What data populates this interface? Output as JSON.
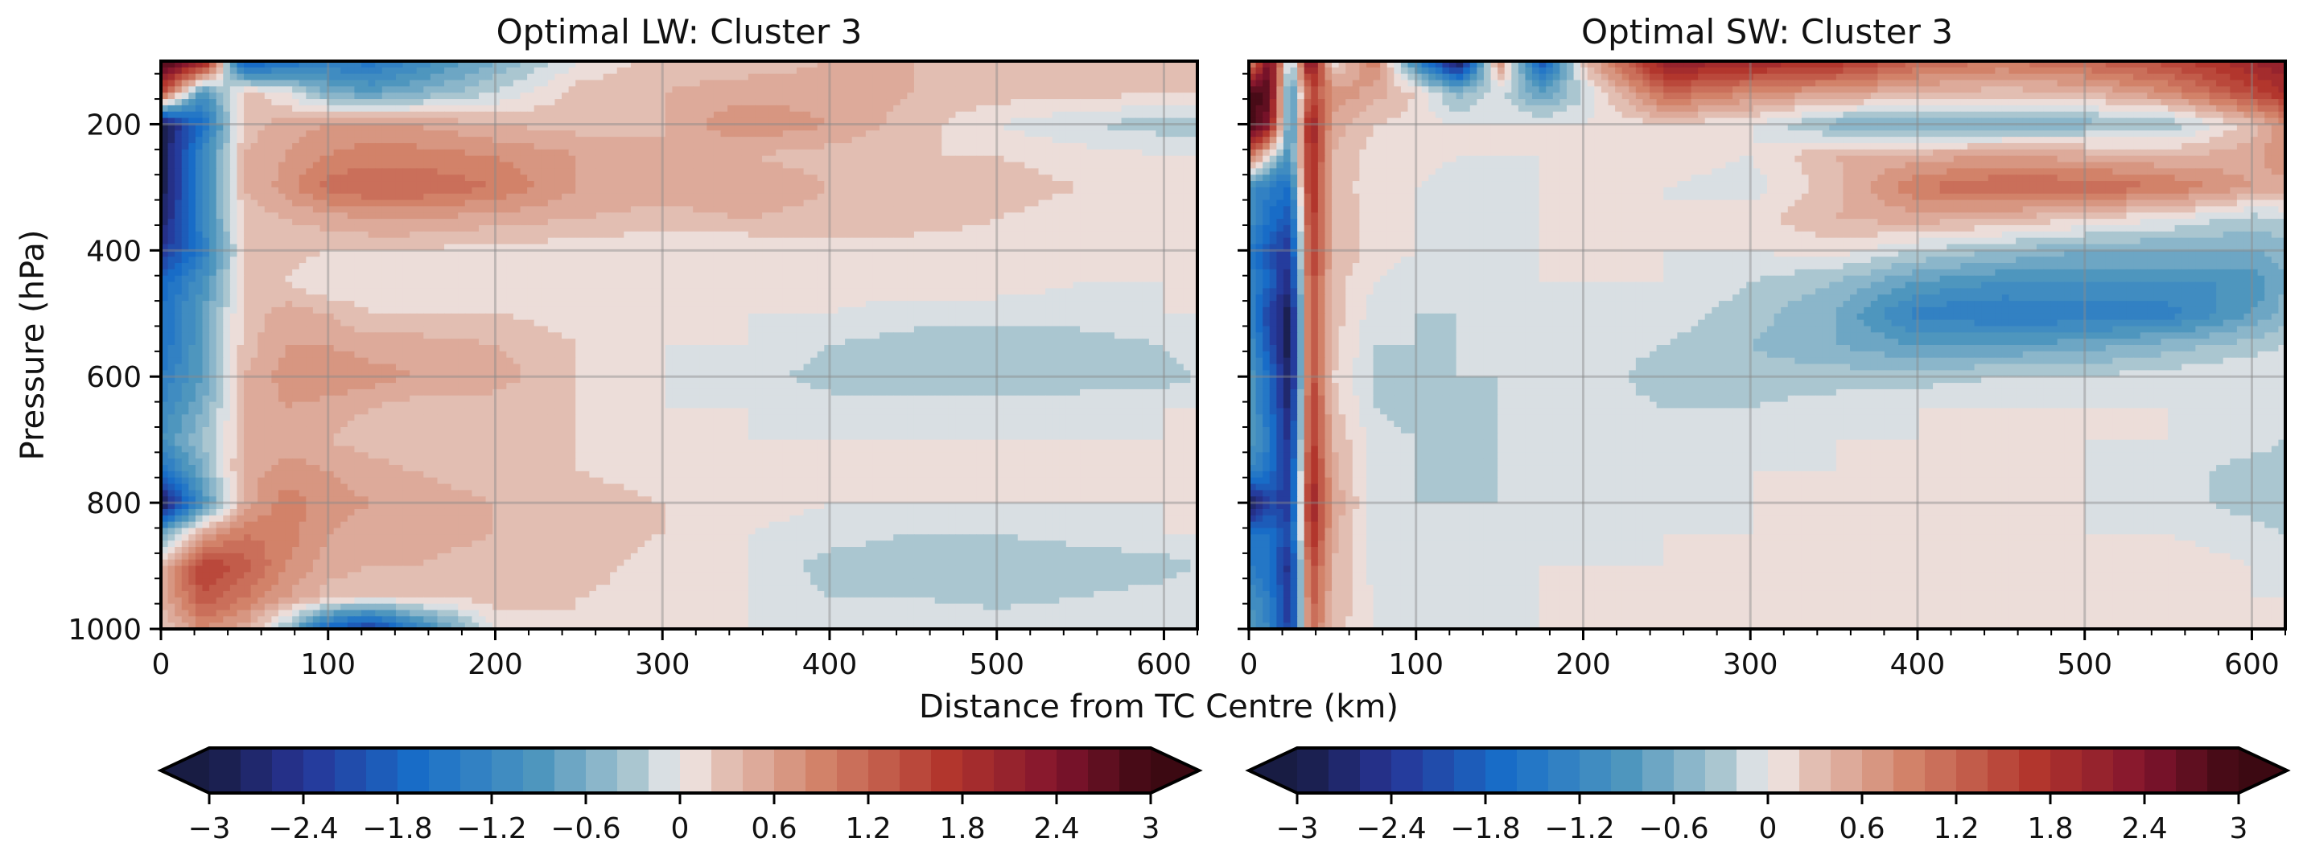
{
  "figure": {
    "shared_xlabel": "Distance from TC Centre (km)"
  },
  "chart_data": [
    {
      "type": "heatmap",
      "title": "Optimal LW: Cluster 3",
      "xlabel": "",
      "ylabel": "Pressure (hPa)",
      "xlim": [
        0,
        620
      ],
      "ylim": [
        1000,
        100
      ],
      "x_ticks": [
        0,
        100,
        200,
        300,
        400,
        500,
        600
      ],
      "y_ticks": [
        200,
        400,
        600,
        800,
        1000
      ],
      "grid": true,
      "x": [
        0,
        25,
        50,
        75,
        100,
        125,
        150,
        200,
        250,
        300,
        350,
        400,
        450,
        500,
        550,
        600,
        620
      ],
      "y": [
        100,
        150,
        200,
        250,
        300,
        350,
        400,
        450,
        500,
        550,
        600,
        650,
        700,
        750,
        800,
        850,
        900,
        950,
        1000
      ],
      "z": [
        [
          3.0,
          2.2,
          -2.0,
          -1.6,
          -1.4,
          -1.5,
          -1.2,
          -0.6,
          0.0,
          0.3,
          0.3,
          0.4,
          0.4,
          0.3,
          0.4,
          0.4,
          0.4
        ],
        [
          1.5,
          -1.0,
          0.3,
          0.0,
          -0.6,
          -0.8,
          -0.6,
          -0.2,
          0.3,
          0.4,
          0.5,
          0.5,
          0.4,
          0.3,
          0.3,
          0.2,
          0.2
        ],
        [
          -3.0,
          -1.6,
          0.3,
          0.5,
          0.6,
          0.7,
          0.6,
          0.4,
          0.3,
          0.4,
          0.8,
          0.6,
          0.3,
          0.0,
          -0.2,
          -0.3,
          -0.3
        ],
        [
          -3.0,
          -1.2,
          0.4,
          0.6,
          0.8,
          0.9,
          0.9,
          0.8,
          0.6,
          0.4,
          0.4,
          0.3,
          0.2,
          0.2,
          0.1,
          0.0,
          0.0
        ],
        [
          -3.0,
          -1.2,
          0.4,
          0.7,
          1.1,
          1.2,
          1.2,
          1.0,
          0.6,
          0.5,
          0.6,
          0.4,
          0.3,
          0.3,
          0.2,
          0.1,
          0.0
        ],
        [
          -2.8,
          -1.2,
          0.3,
          0.4,
          0.5,
          0.6,
          0.6,
          0.5,
          0.4,
          0.3,
          0.4,
          0.3,
          0.3,
          0.2,
          0.1,
          0.0,
          0.0
        ],
        [
          -2.4,
          -1.4,
          0.2,
          0.3,
          0.2,
          0.2,
          0.2,
          0.1,
          0.1,
          0.0,
          0.0,
          0.1,
          0.1,
          0.1,
          0.1,
          0.0,
          0.0
        ],
        [
          -1.8,
          -1.0,
          0.2,
          0.2,
          0.0,
          0.0,
          0.0,
          0.1,
          0.1,
          0.0,
          0.0,
          0.1,
          0.1,
          0.1,
          0.0,
          0.0,
          0.0
        ],
        [
          -1.6,
          -0.8,
          0.3,
          0.5,
          0.4,
          0.2,
          0.2,
          0.2,
          0.1,
          0.0,
          0.0,
          0.0,
          -0.1,
          -0.1,
          -0.1,
          0.0,
          0.0
        ],
        [
          -1.6,
          -0.8,
          0.3,
          0.6,
          0.6,
          0.5,
          0.5,
          0.4,
          0.2,
          0.0,
          0.0,
          -0.2,
          -0.3,
          -0.3,
          -0.3,
          -0.2,
          0.0
        ],
        [
          -1.4,
          -0.8,
          0.4,
          0.7,
          0.8,
          0.7,
          0.6,
          0.5,
          0.2,
          0.0,
          -0.1,
          -0.3,
          -0.3,
          -0.3,
          -0.3,
          -0.3,
          -0.2
        ],
        [
          -1.2,
          -0.6,
          0.4,
          0.6,
          0.5,
          0.4,
          0.3,
          0.3,
          0.2,
          0.0,
          0.0,
          -0.1,
          -0.1,
          -0.1,
          -0.1,
          0.0,
          0.0
        ],
        [
          -1.0,
          -0.4,
          0.4,
          0.5,
          0.4,
          0.3,
          0.2,
          0.2,
          0.2,
          0.0,
          0.0,
          0.0,
          0.0,
          0.0,
          0.0,
          0.0,
          0.0
        ],
        [
          -1.6,
          -0.6,
          0.5,
          0.7,
          0.6,
          0.5,
          0.4,
          0.3,
          0.2,
          0.1,
          0.0,
          0.0,
          0.0,
          0.0,
          0.0,
          0.0,
          0.0
        ],
        [
          -3.0,
          -1.0,
          0.5,
          0.9,
          0.7,
          0.6,
          0.5,
          0.4,
          0.3,
          0.2,
          0.1,
          0.0,
          0.0,
          0.0,
          0.0,
          0.0,
          0.0
        ],
        [
          -0.6,
          0.6,
          1.0,
          0.9,
          0.6,
          0.5,
          0.5,
          0.4,
          0.3,
          0.2,
          0.0,
          -0.1,
          -0.2,
          -0.2,
          -0.1,
          0.0,
          0.0
        ],
        [
          0.4,
          1.6,
          1.3,
          0.8,
          0.5,
          0.4,
          0.4,
          0.3,
          0.3,
          0.1,
          0.0,
          -0.3,
          -0.4,
          -0.4,
          -0.4,
          -0.3,
          -0.2
        ],
        [
          0.4,
          1.4,
          1.0,
          0.6,
          0.3,
          0.2,
          0.2,
          0.3,
          0.2,
          0.1,
          0.0,
          -0.2,
          -0.2,
          -0.3,
          -0.2,
          -0.1,
          0.0
        ],
        [
          0.2,
          0.8,
          0.5,
          -0.4,
          -1.8,
          -2.4,
          -1.4,
          0.0,
          0.2,
          0.1,
          0.0,
          0.0,
          0.0,
          0.0,
          0.0,
          0.0,
          0.0
        ]
      ],
      "colorbar": {
        "vmin": -3,
        "vmax": 3,
        "step": 0.2,
        "ticks": [
          -3,
          -2.4,
          -1.8,
          -1.2,
          -0.6,
          0,
          0.6,
          1.2,
          1.8,
          2.4,
          3
        ],
        "tick_labels": [
          "−3",
          "−2.4",
          "−1.8",
          "−1.2",
          "−0.6",
          "0",
          "0.6",
          "1.2",
          "1.8",
          "2.4",
          "3"
        ],
        "extend": "both",
        "cmap": "balance (dark blue → white → dark red)"
      }
    },
    {
      "type": "heatmap",
      "title": "Optimal SW: Cluster 3",
      "xlabel": "",
      "ylabel": "",
      "xlim": [
        0,
        620
      ],
      "ylim": [
        1000,
        100
      ],
      "x_ticks": [
        0,
        100,
        200,
        300,
        400,
        500,
        600
      ],
      "y_ticks": [
        200,
        400,
        600,
        800,
        1000
      ],
      "grid": true,
      "x": [
        0,
        12,
        25,
        37,
        50,
        75,
        100,
        125,
        150,
        175,
        200,
        250,
        300,
        350,
        400,
        450,
        500,
        550,
        600,
        620
      ],
      "y": [
        100,
        150,
        200,
        250,
        300,
        350,
        400,
        450,
        500,
        550,
        600,
        650,
        700,
        750,
        800,
        850,
        900,
        950,
        1000
      ],
      "z": [
        [
          0.5,
          2.6,
          -0.5,
          2.6,
          0.0,
          1.0,
          -1.2,
          -3.0,
          0.8,
          -2.0,
          0.3,
          2.2,
          2.0,
          1.8,
          1.2,
          1.0,
          1.2,
          1.5,
          2.0,
          2.2
        ],
        [
          3.0,
          2.8,
          -1.2,
          1.5,
          0.8,
          0.5,
          0.2,
          -0.5,
          -0.1,
          -0.8,
          -0.2,
          1.2,
          0.8,
          0.6,
          0.4,
          0.3,
          0.4,
          0.8,
          1.5,
          1.8
        ],
        [
          3.0,
          2.4,
          -1.2,
          2.2,
          0.5,
          0.2,
          0.1,
          0.0,
          0.0,
          0.0,
          0.0,
          0.2,
          0.0,
          -0.5,
          -0.7,
          -0.6,
          -0.5,
          -0.4,
          0.3,
          0.8
        ],
        [
          1.2,
          0.0,
          -1.0,
          2.0,
          0.4,
          0.1,
          0.1,
          0.0,
          0.0,
          0.0,
          0.0,
          0.1,
          0.0,
          0.4,
          0.5,
          0.6,
          0.5,
          0.4,
          0.5,
          0.8
        ],
        [
          -1.0,
          -1.4,
          -1.6,
          2.0,
          0.3,
          0.1,
          0.0,
          -0.1,
          -0.1,
          0.0,
          0.0,
          0.0,
          -0.1,
          0.3,
          1.0,
          1.2,
          1.2,
          1.0,
          0.6,
          0.5
        ],
        [
          -1.0,
          -1.6,
          -2.0,
          1.8,
          0.4,
          0.1,
          0.0,
          -0.1,
          -0.1,
          0.0,
          0.0,
          0.0,
          0.1,
          0.4,
          0.5,
          0.4,
          0.2,
          0.0,
          -0.3,
          -0.2
        ],
        [
          -1.4,
          -2.0,
          -2.4,
          1.8,
          0.4,
          0.1,
          0.0,
          -0.1,
          -0.1,
          0.0,
          0.0,
          0.0,
          0.0,
          0.1,
          -0.2,
          -0.4,
          -0.6,
          -0.6,
          -0.6,
          -0.5
        ],
        [
          -1.2,
          -1.8,
          -2.6,
          1.6,
          0.3,
          0.0,
          -0.1,
          -0.1,
          -0.1,
          0.0,
          0.0,
          0.0,
          -0.2,
          -0.4,
          -0.8,
          -1.0,
          -1.0,
          -1.0,
          -1.0,
          -0.6
        ],
        [
          -1.2,
          -2.2,
          -3.0,
          1.6,
          0.3,
          -0.1,
          -0.2,
          -0.2,
          -0.1,
          -0.1,
          0.0,
          -0.1,
          -0.3,
          -0.6,
          -1.3,
          -1.4,
          -1.4,
          -1.3,
          -0.8,
          -0.5
        ],
        [
          -1.0,
          -2.0,
          -3.0,
          1.6,
          0.3,
          -0.2,
          -0.2,
          -0.2,
          -0.1,
          -0.1,
          -0.1,
          -0.2,
          -0.4,
          -0.6,
          -0.8,
          -0.8,
          -0.7,
          -0.5,
          -0.3,
          -0.2
        ],
        [
          -0.8,
          -1.6,
          -3.0,
          1.6,
          0.2,
          -0.2,
          -0.3,
          -0.2,
          -0.2,
          -0.1,
          -0.1,
          -0.3,
          -0.3,
          -0.3,
          -0.3,
          -0.2,
          -0.2,
          -0.1,
          0.0,
          0.0
        ],
        [
          -0.8,
          -1.6,
          -2.8,
          1.8,
          0.3,
          -0.2,
          -0.3,
          -0.2,
          -0.2,
          -0.1,
          -0.1,
          -0.2,
          -0.2,
          -0.1,
          0.0,
          0.0,
          0.0,
          0.0,
          -0.1,
          -0.1
        ],
        [
          -0.8,
          -1.4,
          -2.6,
          1.8,
          0.4,
          -0.1,
          -0.2,
          -0.2,
          -0.2,
          -0.1,
          -0.1,
          -0.1,
          -0.1,
          0.0,
          0.0,
          0.0,
          0.0,
          0.0,
          -0.1,
          -0.2
        ],
        [
          -1.2,
          -1.6,
          -2.4,
          2.0,
          0.5,
          -0.1,
          -0.2,
          -0.2,
          -0.2,
          -0.1,
          -0.1,
          -0.1,
          0.0,
          0.0,
          0.0,
          0.0,
          0.0,
          -0.1,
          -0.3,
          -0.3
        ],
        [
          -3.0,
          -2.2,
          -2.4,
          2.2,
          0.6,
          -0.1,
          -0.2,
          -0.2,
          -0.2,
          -0.1,
          -0.1,
          -0.1,
          0.0,
          0.0,
          0.0,
          0.0,
          0.0,
          -0.1,
          -0.3,
          -0.4
        ],
        [
          -1.6,
          -1.6,
          -2.2,
          2.0,
          0.5,
          -0.1,
          -0.2,
          -0.1,
          -0.1,
          -0.1,
          -0.1,
          0.0,
          0.0,
          0.0,
          0.0,
          0.0,
          0.0,
          0.0,
          -0.1,
          -0.2
        ],
        [
          -1.4,
          -1.6,
          -2.6,
          1.6,
          0.4,
          -0.1,
          -0.2,
          -0.1,
          -0.1,
          0.0,
          0.0,
          0.0,
          0.0,
          0.2,
          0.0,
          0.1,
          0.2,
          0.1,
          0.0,
          -0.1
        ],
        [
          -1.0,
          -1.4,
          -2.4,
          1.4,
          0.4,
          0.0,
          -0.2,
          -0.1,
          -0.1,
          0.0,
          0.0,
          0.0,
          0.0,
          0.1,
          0.0,
          0.1,
          0.2,
          0.1,
          0.0,
          0.0
        ],
        [
          -0.8,
          -1.2,
          -2.4,
          1.2,
          0.3,
          0.0,
          -0.1,
          -0.1,
          -0.1,
          0.0,
          0.0,
          0.0,
          0.0,
          0.0,
          0.0,
          0.0,
          0.1,
          0.1,
          0.0,
          0.0
        ]
      ],
      "colorbar": {
        "vmin": -3,
        "vmax": 3,
        "step": 0.2,
        "ticks": [
          -3,
          -2.4,
          -1.8,
          -1.2,
          -0.6,
          0,
          0.6,
          1.2,
          1.8,
          2.4,
          3
        ],
        "tick_labels": [
          "−3",
          "−2.4",
          "−1.8",
          "−1.2",
          "−0.6",
          "0",
          "0.6",
          "1.2",
          "1.8",
          "2.4",
          "3"
        ],
        "extend": "both",
        "cmap": "balance (dark blue → white → dark red)"
      }
    }
  ]
}
